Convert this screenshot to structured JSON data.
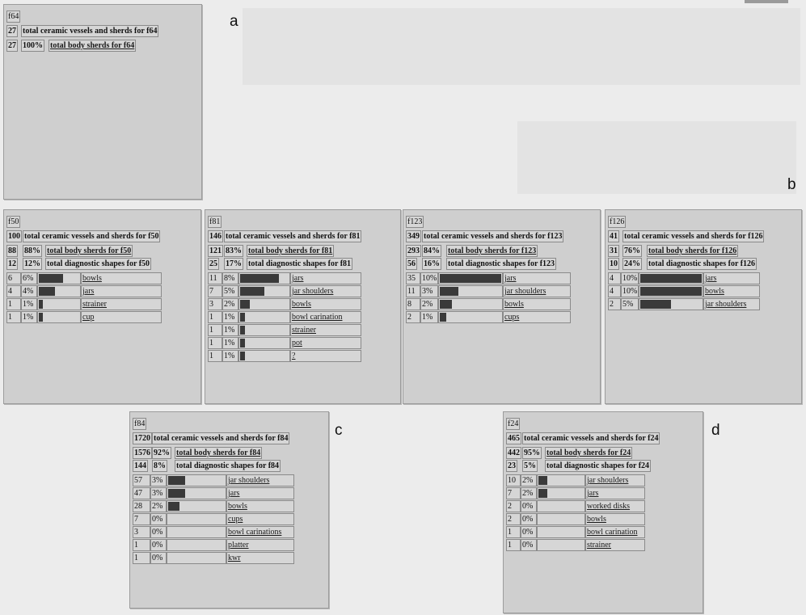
{
  "figure_letters": [
    "a",
    "b",
    "c",
    "d"
  ],
  "panels": [
    {
      "id": "f64",
      "letter": "a",
      "summary": [
        {
          "count": "27",
          "pct": "",
          "label": "total ceramic vessels and sherds for f64",
          "underline": false
        },
        {
          "count": "27",
          "pct": "100%",
          "label": "total body sherds for f64",
          "underline": true
        }
      ],
      "shapes": []
    },
    {
      "id": "f50",
      "letter": "",
      "summary": [
        {
          "count": "100",
          "pct": "",
          "label": "total ceramic vessels and sherds for f50",
          "underline": false
        },
        {
          "count": "88",
          "pct": "88%",
          "label": "total body sherds for f50",
          "underline": true
        },
        {
          "count": "12",
          "pct": "12%",
          "label": "total diagnostic shapes for f50",
          "underline": false
        }
      ],
      "shapes": [
        {
          "count": "6",
          "pct": "6%",
          "label": "bowls",
          "fraction": 0.6
        },
        {
          "count": "4",
          "pct": "4%",
          "label": "jars",
          "fraction": 0.4
        },
        {
          "count": "1",
          "pct": "1%",
          "label": "strainer",
          "fraction": 0.1
        },
        {
          "count": "1",
          "pct": "1%",
          "label": "cup",
          "fraction": 0.1
        }
      ]
    },
    {
      "id": "f81",
      "letter": "",
      "summary": [
        {
          "count": "146",
          "pct": "",
          "label": "total ceramic vessels and sherds for f81",
          "underline": false
        },
        {
          "count": "121",
          "pct": "83%",
          "label": "total body sherds for f81",
          "underline": true
        },
        {
          "count": "25",
          "pct": "17%",
          "label": "total diagnostic shapes for f81",
          "underline": false
        }
      ],
      "shapes": [
        {
          "count": "11",
          "pct": "8%",
          "label": "jars",
          "fraction": 0.8
        },
        {
          "count": "7",
          "pct": "5%",
          "label": "jar shoulders",
          "fraction": 0.5
        },
        {
          "count": "3",
          "pct": "2%",
          "label": "bowls",
          "fraction": 0.2
        },
        {
          "count": "1",
          "pct": "1%",
          "label": "bowl carination",
          "fraction": 0.1
        },
        {
          "count": "1",
          "pct": "1%",
          "label": "strainer",
          "fraction": 0.1
        },
        {
          "count": "1",
          "pct": "1%",
          "label": "pot",
          "fraction": 0.1
        },
        {
          "count": "1",
          "pct": "1%",
          "label": "?",
          "fraction": 0.1
        }
      ]
    },
    {
      "id": "f123",
      "letter": "",
      "summary": [
        {
          "count": "349",
          "pct": "",
          "label": "total ceramic vessels and sherds for f123",
          "underline": false
        },
        {
          "count": "293",
          "pct": "84%",
          "label": "total body sherds for f123",
          "underline": true
        },
        {
          "count": "56",
          "pct": "16%",
          "label": "total diagnostic shapes for f123",
          "underline": false
        }
      ],
      "shapes": [
        {
          "count": "35",
          "pct": "10%",
          "label": "jars",
          "fraction": 1.0
        },
        {
          "count": "11",
          "pct": "3%",
          "label": "jar shoulders",
          "fraction": 0.3
        },
        {
          "count": "8",
          "pct": "2%",
          "label": "bowls",
          "fraction": 0.2
        },
        {
          "count": "2",
          "pct": "1%",
          "label": "cups",
          "fraction": 0.1
        }
      ]
    },
    {
      "id": "f126",
      "letter": "b",
      "summary": [
        {
          "count": "41",
          "pct": "",
          "label": "total ceramic vessels and sherds for f126",
          "underline": false
        },
        {
          "count": "31",
          "pct": "76%",
          "label": "total body sherds for f126",
          "underline": true
        },
        {
          "count": "10",
          "pct": "24%",
          "label": "total diagnostic shapes for f126",
          "underline": false
        }
      ],
      "shapes": [
        {
          "count": "4",
          "pct": "10%",
          "label": "jars",
          "fraction": 1.0
        },
        {
          "count": "4",
          "pct": "10%",
          "label": "bowls",
          "fraction": 1.0
        },
        {
          "count": "2",
          "pct": "5%",
          "label": "jar shoulders",
          "fraction": 0.5
        }
      ]
    },
    {
      "id": "f84",
      "letter": "c",
      "summary": [
        {
          "count": "1720",
          "pct": "",
          "label": "total ceramic vessels and sherds for f84",
          "underline": false
        },
        {
          "count": "1576",
          "pct": "92%",
          "label": "total body sherds for f84",
          "underline": true
        },
        {
          "count": "144",
          "pct": "8%",
          "label": "total diagnostic shapes for f84",
          "underline": false
        }
      ],
      "shapes": [
        {
          "count": "57",
          "pct": "3%",
          "label": "jar shoulders",
          "fraction": 0.3
        },
        {
          "count": "47",
          "pct": "3%",
          "label": "jars",
          "fraction": 0.3
        },
        {
          "count": "28",
          "pct": "2%",
          "label": "bowls",
          "fraction": 0.2
        },
        {
          "count": "7",
          "pct": "0%",
          "label": "cups",
          "fraction": 0
        },
        {
          "count": "3",
          "pct": "0%",
          "label": "bowl carinations",
          "fraction": 0
        },
        {
          "count": "1",
          "pct": "0%",
          "label": "platter",
          "fraction": 0
        },
        {
          "count": "1",
          "pct": "0%",
          "label": "kwr",
          "fraction": 0
        }
      ]
    },
    {
      "id": "f24",
      "letter": "d",
      "summary": [
        {
          "count": "465",
          "pct": "",
          "label": "total ceramic vessels and sherds for f24",
          "underline": false
        },
        {
          "count": "442",
          "pct": "95%",
          "label": "total body sherds for f24",
          "underline": true
        },
        {
          "count": "23",
          "pct": "5%",
          "label": "total diagnostic shapes for f24",
          "underline": false
        }
      ],
      "shapes": [
        {
          "count": "10",
          "pct": "2%",
          "label": "jar shoulders",
          "fraction": 0.2
        },
        {
          "count": "7",
          "pct": "2%",
          "label": "jars",
          "fraction": 0.2
        },
        {
          "count": "2",
          "pct": "0%",
          "label": "worked disks",
          "fraction": 0
        },
        {
          "count": "2",
          "pct": "0%",
          "label": "bowls",
          "fraction": 0
        },
        {
          "count": "1",
          "pct": "0%",
          "label": "bowl carination",
          "fraction": 0
        },
        {
          "count": "1",
          "pct": "0%",
          "label": "strainer",
          "fraction": 0
        }
      ]
    }
  ]
}
